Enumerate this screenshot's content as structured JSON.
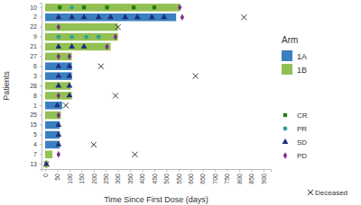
{
  "chart_data": {
    "type": "bar",
    "orientation": "horizontal",
    "x_label": "Time Since First Dose (days)",
    "y_label": "Patients",
    "legend": "right",
    "legend_title": "Arm",
    "categories": [
      "10",
      "2",
      "22",
      "9",
      "21",
      "27",
      "6",
      "3",
      "28",
      "8",
      "1",
      "25",
      "15",
      "5",
      "4",
      "7",
      "13"
    ],
    "series": [
      {
        "name": "1A",
        "color": "#3a7fc1",
        "values": [
          null,
          540,
          null,
          null,
          null,
          null,
          110,
          110,
          null,
          null,
          70,
          null,
          60,
          60,
          60,
          null,
          null
        ]
      },
      {
        "name": "1B",
        "color": "#93c052",
        "values": [
          555,
          null,
          300,
          300,
          270,
          110,
          null,
          null,
          105,
          110,
          null,
          65,
          null,
          null,
          null,
          30,
          10
        ]
      }
    ],
    "markers": [
      {
        "name": "CR",
        "color": "#1e7b1e",
        "marker": "square",
        "x": [
          60,
          160,
          255,
          365,
          450
        ],
        "y": [
          "10",
          "10",
          "10",
          "10",
          "10"
        ]
      },
      {
        "name": "PR",
        "color": "#2aa39b",
        "marker": "circle",
        "x": [
          110,
          55,
          110,
          170,
          220
        ],
        "y": [
          "10",
          "9",
          "9",
          "9",
          "9"
        ]
      },
      {
        "name": "SD",
        "color": "#1f2d7a",
        "marker": "triangle",
        "x": [
          55,
          110,
          160,
          220,
          270,
          330,
          380,
          440,
          490,
          55,
          110,
          160,
          55,
          100,
          55,
          100,
          55,
          100,
          100,
          50,
          55,
          55,
          55,
          5
        ],
        "y": [
          "2",
          "2",
          "2",
          "2",
          "2",
          "2",
          "2",
          "2",
          "2",
          "21",
          "21",
          "21",
          "6",
          "6",
          "3",
          "3",
          "28",
          "28",
          "8",
          "1",
          "15",
          "5",
          "4",
          "13"
        ]
      },
      {
        "name": "PD",
        "color": "#7b2c8c",
        "marker": "diamond",
        "x": [
          555,
          565,
          55,
          290,
          255,
          55,
          100,
          55,
          55,
          55
        ],
        "y": [
          "10",
          "2",
          "22",
          "9",
          "21",
          "27",
          "27",
          "8",
          "25",
          "7"
        ]
      },
      {
        "name": "Deceased",
        "color": "#333333",
        "marker": "x",
        "x": [
          820,
          300,
          230,
          620,
          290,
          85,
          200,
          370,
          5
        ],
        "y": [
          "2",
          "22",
          "6",
          "3",
          "8",
          "1",
          "4",
          "7",
          "13"
        ]
      }
    ],
    "xlim": [
      -15,
      930
    ],
    "xticks": [
      0,
      50,
      100,
      150,
      200,
      250,
      300,
      350,
      400,
      450,
      500,
      550,
      600,
      650,
      700,
      750,
      800,
      850,
      900
    ]
  }
}
